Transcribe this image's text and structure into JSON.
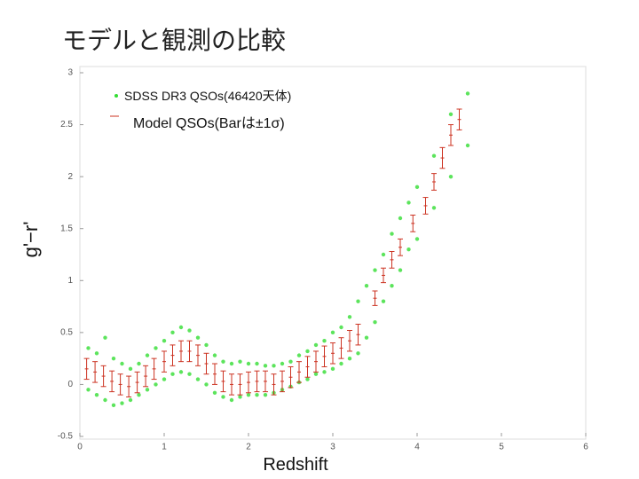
{
  "chart_data": {
    "type": "scatter",
    "title": "モデルと観測の比較",
    "x_label": "Redshift",
    "y_label": "g'−r'",
    "xlim": [
      0,
      6
    ],
    "ylim": [
      -0.5,
      3
    ],
    "xticks": [
      0,
      1,
      2,
      3,
      4,
      5,
      6
    ],
    "yticks": [
      -0.5,
      0,
      0.5,
      1,
      1.5,
      2,
      2.5,
      3
    ],
    "series": [
      {
        "name": "SDSS DR3 QSOs(46420天体)",
        "color": "#33dd33",
        "x": [
          0.1,
          0.1,
          0.2,
          0.2,
          0.3,
          0.3,
          0.4,
          0.4,
          0.5,
          0.5,
          0.6,
          0.6,
          0.7,
          0.7,
          0.8,
          0.8,
          0.9,
          0.9,
          1.0,
          1.0,
          1.1,
          1.1,
          1.2,
          1.2,
          1.3,
          1.3,
          1.4,
          1.4,
          1.5,
          1.5,
          1.6,
          1.6,
          1.7,
          1.7,
          1.8,
          1.8,
          1.9,
          1.9,
          2.0,
          2.0,
          2.1,
          2.1,
          2.2,
          2.2,
          2.3,
          2.3,
          2.4,
          2.4,
          2.5,
          2.5,
          2.6,
          2.6,
          2.7,
          2.7,
          2.8,
          2.8,
          2.9,
          2.9,
          3.0,
          3.0,
          3.1,
          3.1,
          3.2,
          3.2,
          3.3,
          3.3,
          3.4,
          3.4,
          3.5,
          3.5,
          3.6,
          3.6,
          3.7,
          3.7,
          3.8,
          3.8,
          3.9,
          3.9,
          4.0,
          4.0,
          4.2,
          4.2,
          4.4,
          4.4,
          4.6,
          4.6
        ],
        "values": [
          0.35,
          -0.05,
          0.3,
          -0.1,
          0.45,
          -0.15,
          0.25,
          -0.2,
          0.2,
          -0.18,
          0.15,
          -0.15,
          0.2,
          -0.1,
          0.28,
          -0.05,
          0.35,
          0.0,
          0.42,
          0.05,
          0.5,
          0.1,
          0.55,
          0.12,
          0.52,
          0.1,
          0.45,
          0.05,
          0.38,
          0.0,
          0.28,
          -0.08,
          0.22,
          -0.12,
          0.2,
          -0.15,
          0.22,
          -0.12,
          0.2,
          -0.1,
          0.2,
          -0.1,
          0.18,
          -0.1,
          0.18,
          -0.08,
          0.2,
          -0.05,
          0.22,
          -0.02,
          0.28,
          0.02,
          0.32,
          0.05,
          0.38,
          0.1,
          0.42,
          0.12,
          0.5,
          0.15,
          0.55,
          0.2,
          0.65,
          0.25,
          0.8,
          0.3,
          0.95,
          0.45,
          1.1,
          0.6,
          1.25,
          0.8,
          1.45,
          0.95,
          1.6,
          1.1,
          1.75,
          1.3,
          1.9,
          1.4,
          2.2,
          1.7,
          2.6,
          2.0,
          2.8,
          2.3
        ]
      },
      {
        "name": "Model QSOs(Barは±1σ)",
        "color": "#cc3322",
        "x": [
          0.08,
          0.18,
          0.28,
          0.38,
          0.48,
          0.58,
          0.68,
          0.78,
          0.88,
          1.0,
          1.1,
          1.2,
          1.3,
          1.4,
          1.5,
          1.6,
          1.7,
          1.8,
          1.9,
          2.0,
          2.1,
          2.2,
          2.3,
          2.4,
          2.5,
          2.6,
          2.7,
          2.8,
          2.9,
          3.0,
          3.1,
          3.2,
          3.3,
          3.5,
          3.6,
          3.7,
          3.8,
          3.95,
          4.1,
          4.2,
          4.3,
          4.4,
          4.5
        ],
        "values": [
          0.15,
          0.12,
          0.08,
          0.03,
          0.0,
          -0.02,
          0.02,
          0.08,
          0.15,
          0.22,
          0.28,
          0.32,
          0.32,
          0.28,
          0.2,
          0.1,
          0.03,
          0.0,
          0.0,
          0.02,
          0.03,
          0.03,
          0.0,
          0.03,
          0.07,
          0.12,
          0.17,
          0.22,
          0.27,
          0.3,
          0.35,
          0.42,
          0.48,
          0.83,
          1.05,
          1.2,
          1.32,
          1.55,
          1.72,
          1.95,
          2.18,
          2.4,
          2.55
        ],
        "errors": [
          0.1,
          0.1,
          0.1,
          0.1,
          0.1,
          0.1,
          0.1,
          0.1,
          0.1,
          0.1,
          0.1,
          0.1,
          0.1,
          0.1,
          0.1,
          0.1,
          0.1,
          0.1,
          0.1,
          0.1,
          0.1,
          0.1,
          0.1,
          0.1,
          0.1,
          0.1,
          0.1,
          0.1,
          0.1,
          0.1,
          0.1,
          0.1,
          0.1,
          0.07,
          0.07,
          0.08,
          0.08,
          0.08,
          0.08,
          0.08,
          0.1,
          0.1,
          0.1
        ]
      }
    ]
  }
}
